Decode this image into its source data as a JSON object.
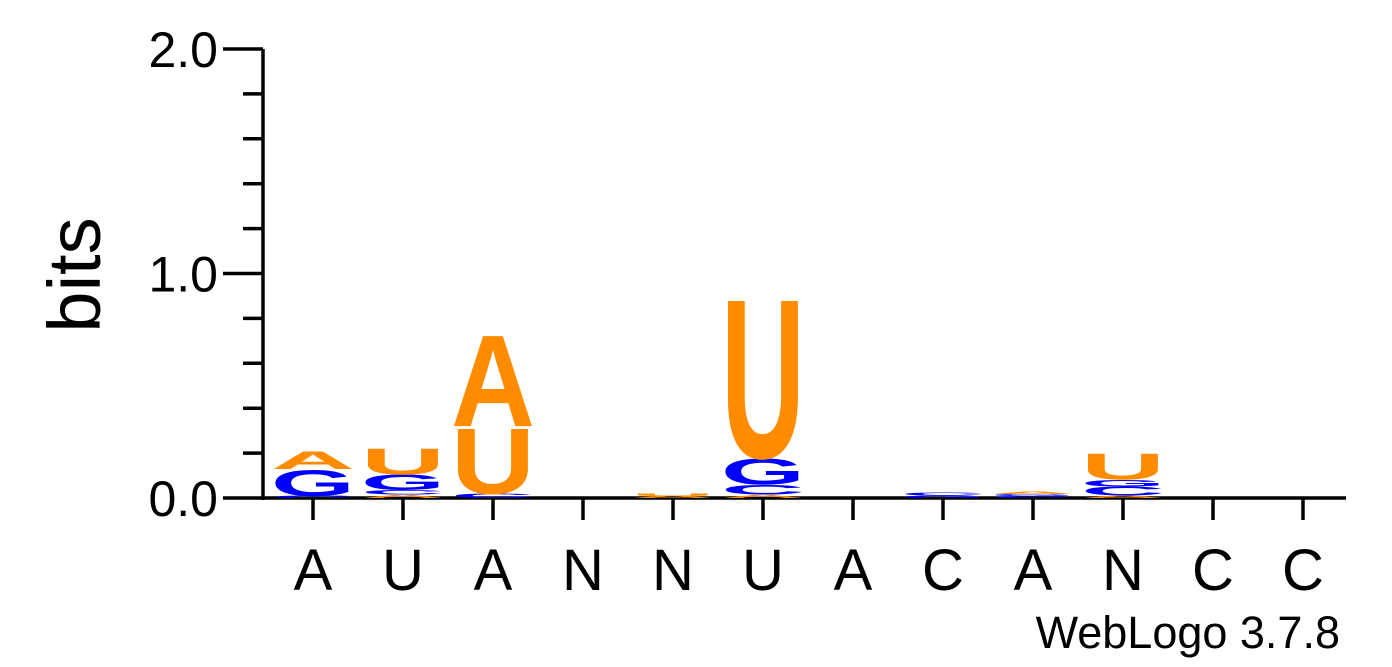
{
  "chart_data": {
    "type": "sequence-logo",
    "ylabel": "bits",
    "ylim": [
      0,
      2.0
    ],
    "y_ticks": [
      "0.0",
      "1.0",
      "2.0"
    ],
    "x_labels": [
      "A",
      "U",
      "A",
      "N",
      "N",
      "U",
      "A",
      "C",
      "A",
      "N",
      "C",
      "C"
    ],
    "colors": {
      "A": "#ff8c00",
      "U": "#ff8c00",
      "G": "#0000ff",
      "C": "#0000ff"
    },
    "positions": [
      {
        "stack": [
          {
            "letter": "C",
            "bits": 0.01
          },
          {
            "letter": "G",
            "bits": 0.12
          },
          {
            "letter": "A",
            "bits": 0.08
          }
        ]
      },
      {
        "stack": [
          {
            "letter": "A",
            "bits": 0.015
          },
          {
            "letter": "C",
            "bits": 0.02
          },
          {
            "letter": "G",
            "bits": 0.07
          },
          {
            "letter": "U",
            "bits": 0.12
          }
        ]
      },
      {
        "stack": [
          {
            "letter": "C",
            "bits": 0.02
          },
          {
            "letter": "U",
            "bits": 0.3
          },
          {
            "letter": "A",
            "bits": 0.42
          }
        ]
      },
      {
        "stack": []
      },
      {
        "stack": [
          {
            "letter": "A",
            "bits": 0.01
          },
          {
            "letter": "U",
            "bits": 0.01
          }
        ]
      },
      {
        "stack": [
          {
            "letter": "A",
            "bits": 0.015
          },
          {
            "letter": "C",
            "bits": 0.045
          },
          {
            "letter": "G",
            "bits": 0.12
          },
          {
            "letter": "U",
            "bits": 0.73
          }
        ]
      },
      {
        "stack": []
      },
      {
        "stack": [
          {
            "letter": "G",
            "bits": 0.012
          },
          {
            "letter": "C",
            "bits": 0.015
          }
        ]
      },
      {
        "stack": [
          {
            "letter": "C",
            "bits": 0.008
          },
          {
            "letter": "G",
            "bits": 0.01
          },
          {
            "letter": "A",
            "bits": 0.01
          }
        ]
      },
      {
        "stack": [
          {
            "letter": "A",
            "bits": 0.012
          },
          {
            "letter": "C",
            "bits": 0.04
          },
          {
            "letter": "G",
            "bits": 0.03
          },
          {
            "letter": "U",
            "bits": 0.12
          }
        ]
      },
      {
        "stack": []
      },
      {
        "stack": []
      }
    ]
  },
  "credit": "WebLogo 3.7.8"
}
